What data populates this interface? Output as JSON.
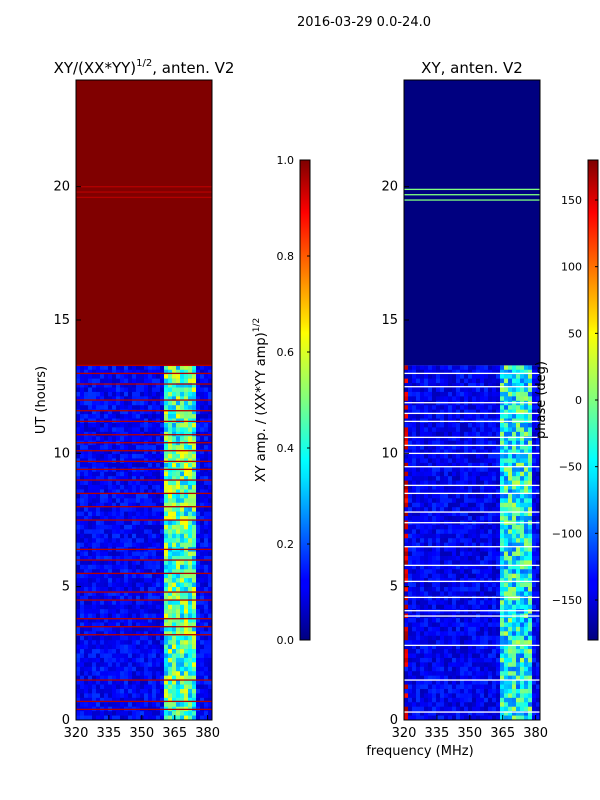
{
  "figure_title": "2016-03-29 0.0-24.0",
  "shared_xlabel": "frequency (MHz)",
  "chart_data": [
    {
      "type": "heatmap",
      "title": "XY/(XX*YY)",
      "title_exp": "1/2",
      "title_suffix": ", anten. V2",
      "ylabel": "UT (hours)",
      "xlim": [
        320,
        382
      ],
      "ylim": [
        0,
        24
      ],
      "x_ticks": [
        "320",
        "335",
        "350",
        "365",
        "380"
      ],
      "x_tick_values": [
        320,
        335,
        350,
        365,
        380
      ],
      "y_ticks": [
        "0",
        "5",
        "10",
        "15",
        "20"
      ],
      "y_tick_values": [
        0,
        5,
        10,
        15,
        20
      ],
      "colorbar": {
        "label": "XY amp. / (XX*YY amp)",
        "label_exp": "1/2",
        "range": [
          0.0,
          1.0
        ],
        "ticks": [
          "0.0",
          "0.2",
          "0.4",
          "0.6",
          "0.8",
          "1.0"
        ],
        "tick_values": [
          0.0,
          0.2,
          0.4,
          0.6,
          0.8,
          1.0
        ]
      },
      "saturated_block": {
        "from_ut": 13.3,
        "to_ut": 24.0,
        "value": 1.0
      },
      "lower_band_level": 0.12,
      "rfi_band": {
        "from_mhz": 361,
        "to_mhz": 374,
        "level": 0.45
      },
      "gap_lines_ut": [
        0.4,
        0.7,
        1.5,
        3.2,
        3.5,
        3.8,
        4.5,
        4.8,
        5.5,
        6.0,
        6.4,
        7.5,
        8.0,
        8.5,
        9.0,
        9.4,
        9.7,
        10.1,
        10.4,
        10.7,
        11.2,
        11.6,
        12.0,
        12.6,
        13.0,
        13.3,
        19.6,
        19.8,
        20.0
      ]
    },
    {
      "type": "heatmap",
      "title": "XY, anten. V2",
      "ylabel": "",
      "xlim": [
        320,
        382
      ],
      "ylim": [
        0,
        24
      ],
      "x_ticks": [
        "320",
        "335",
        "350",
        "365",
        "380"
      ],
      "x_tick_values": [
        320,
        335,
        350,
        365,
        380
      ],
      "y_ticks": [
        "0",
        "5",
        "10",
        "15",
        "20"
      ],
      "y_tick_values": [
        0,
        5,
        10,
        15,
        20
      ],
      "colorbar": {
        "label": "phase (deg)",
        "range": [
          -180,
          180
        ],
        "ticks": [
          "−150",
          "−100",
          "−50",
          "0",
          "50",
          "100",
          "150"
        ],
        "tick_values": [
          -150,
          -100,
          -50,
          0,
          50,
          100,
          150
        ]
      },
      "saturated_block": {
        "from_ut": 13.3,
        "to_ut": 24.0,
        "value": -180
      },
      "lower_band_level": -140,
      "rfi_band": {
        "from_mhz": 363,
        "to_mhz": 378,
        "level": -40
      },
      "gap_lines_ut": [
        0.3,
        1.5,
        2.8,
        3.9,
        4.1,
        4.6,
        5.2,
        5.8,
        6.5,
        7.4,
        7.8,
        8.5,
        8.8,
        9.5,
        10.0,
        10.3,
        10.6,
        11.2,
        11.5,
        11.9,
        12.5,
        13.0,
        19.5,
        19.7,
        19.9
      ]
    }
  ]
}
